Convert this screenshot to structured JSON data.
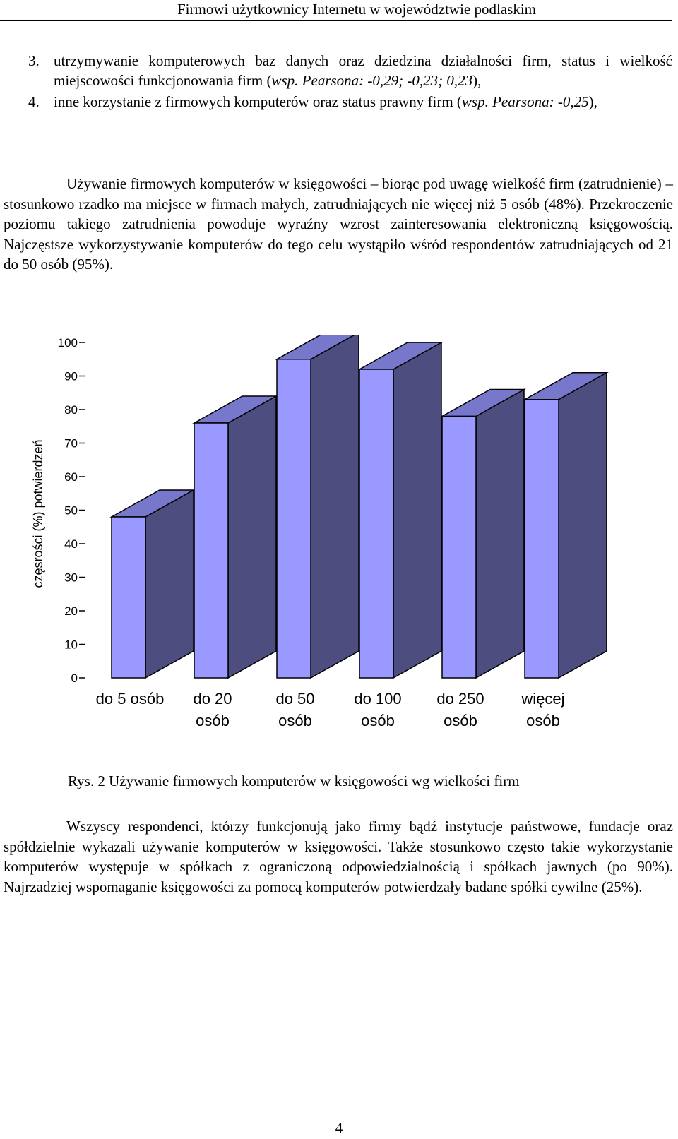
{
  "header": {
    "running_title": "Firmowi użytkownicy Internetu w województwie podlaskim"
  },
  "list": [
    {
      "num": "3.",
      "text": "utrzymywanie komputerowych baz danych oraz dziedzina działalności firm, status i wielkość miejscowości funkcjonowania firm (",
      "italic": "wsp. Pearsona: -0,29; -0,23; 0,23",
      "end": "),",
      "mid": ""
    },
    {
      "num": "4.",
      "text": "inne korzystanie z firmowych komputerów oraz status prawny firm (",
      "italic": "wsp. Pearsona: -0,25",
      "end": "),",
      "mid": ""
    }
  ],
  "paragraph1": "Używanie firmowych komputerów w księgowości – biorąc pod uwagę wielkość firm (zatrudnienie) – stosunkowo rzadko ma miejsce w firmach małych, zatrudniających nie więcej niż 5 osób (48%). Przekroczenie poziomu takiego zatrudnienia powoduje wyraźny wzrost zainteresowania elektroniczną księgowością. Najczęstsze wykorzystywanie komputerów do tego celu wystąpiło wśród respondentów zatrudniających od 21 do 50 osób (95%).",
  "chart_data": {
    "type": "bar",
    "style": "3d",
    "title": "",
    "xlabel": "",
    "ylabel": "częsrości (%) potwierdzeń",
    "ylim": [
      0,
      100
    ],
    "yticks": [
      0,
      10,
      20,
      30,
      40,
      50,
      60,
      70,
      80,
      90,
      100
    ],
    "categories": [
      [
        "do 5 osób"
      ],
      [
        "do 20",
        "osób"
      ],
      [
        "do 50",
        "osób"
      ],
      [
        "do 100",
        "osób"
      ],
      [
        "do 250",
        "osób"
      ],
      [
        "więcej",
        "osób"
      ]
    ],
    "values": [
      48,
      76,
      95,
      92,
      78,
      83
    ],
    "colors": {
      "front": "#9999ff",
      "top": "#7777cc",
      "side": "#4d4d80",
      "stroke": "#000000"
    }
  },
  "caption": "Rys. 2 Używanie firmowych komputerów w księgowości wg wielkości firm",
  "paragraph2": "Wszyscy respondenci, którzy funkcjonują jako firmy bądź instytucje państwowe, fundacje oraz spółdzielnie wykazali używanie komputerów w księgowości. Także stosunkowo często takie wykorzystanie komputerów występuje w spółkach z ograniczoną odpowiedzialnością i spółkach jawnych (po 90%). Najrzadziej wspomaganie księgowości za pomocą komputerów potwierdzały badane spółki cywilne (25%).",
  "page_number": "4"
}
